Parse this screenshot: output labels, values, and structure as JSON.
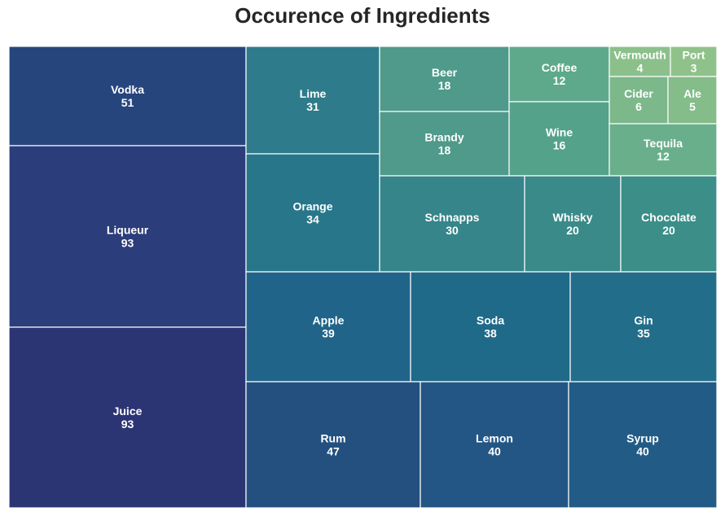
{
  "chart_data": {
    "type": "treemap",
    "title": "Occurence of Ingredients",
    "items": [
      {
        "label": "Vodka",
        "value": 51,
        "color": "#27457d"
      },
      {
        "label": "Liqueur",
        "value": 93,
        "color": "#2b3d7a"
      },
      {
        "label": "Juice",
        "value": 93,
        "color": "#2c3574"
      },
      {
        "label": "Lime",
        "value": 31,
        "color": "#2e7b8b"
      },
      {
        "label": "Orange",
        "value": 34,
        "color": "#287689"
      },
      {
        "label": "Beer",
        "value": 18,
        "color": "#4f9a8a"
      },
      {
        "label": "Brandy",
        "value": 18,
        "color": "#4f9a8a"
      },
      {
        "label": "Coffee",
        "value": 12,
        "color": "#5ea98c"
      },
      {
        "label": "Wine",
        "value": 16,
        "color": "#54a28a"
      },
      {
        "label": "Vermouth",
        "value": 4,
        "color": "#8cc08b"
      },
      {
        "label": "Port",
        "value": 3,
        "color": "#8fc28a"
      },
      {
        "label": "Cider",
        "value": 6,
        "color": "#7cb88a"
      },
      {
        "label": "Ale",
        "value": 5,
        "color": "#84bc8a"
      },
      {
        "label": "Tequila",
        "value": 12,
        "color": "#6aaf8b"
      },
      {
        "label": "Schnapps",
        "value": 30,
        "color": "#36858a"
      },
      {
        "label": "Whisky",
        "value": 20,
        "color": "#3a8a89"
      },
      {
        "label": "Chocolate",
        "value": 20,
        "color": "#3c8e89"
      },
      {
        "label": "Apple",
        "value": 39,
        "color": "#21648a"
      },
      {
        "label": "Soda",
        "value": 38,
        "color": "#1f6989"
      },
      {
        "label": "Gin",
        "value": 35,
        "color": "#226e8a"
      },
      {
        "label": "Rum",
        "value": 47,
        "color": "#24507f"
      },
      {
        "label": "Lemon",
        "value": 40,
        "color": "#235685"
      },
      {
        "label": "Syrup",
        "value": 40,
        "color": "#225c86"
      }
    ]
  }
}
